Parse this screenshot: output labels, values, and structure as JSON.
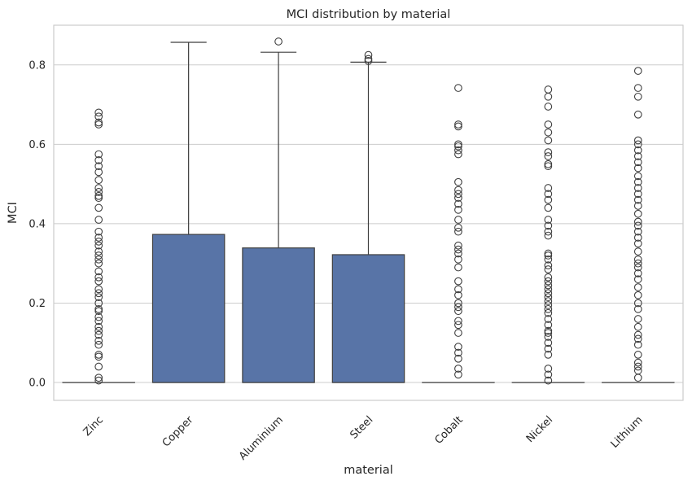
{
  "chart_data": {
    "type": "box",
    "title": "MCI distribution by material",
    "xlabel": "material",
    "ylabel": "MCI",
    "ylim": [
      -0.045,
      0.9
    ],
    "yticks": [
      "0.0",
      "0.2",
      "0.4",
      "0.6",
      "0.8"
    ],
    "grid": true,
    "box_color": "#5874a7",
    "categories": [
      "Zinc",
      "Copper",
      "Aluminium",
      "Steel",
      "Cobalt",
      "Nickel",
      "Lithium"
    ],
    "boxes": [
      {
        "name": "Zinc",
        "q1": 0,
        "median": 0,
        "q3": 0,
        "whisker_low": 0,
        "whisker_high": 0,
        "outliers": [
          0.005,
          0.012,
          0.04,
          0.065,
          0.07,
          0.095,
          0.105,
          0.12,
          0.13,
          0.14,
          0.155,
          0.165,
          0.18,
          0.185,
          0.2,
          0.215,
          0.225,
          0.235,
          0.255,
          0.265,
          0.28,
          0.3,
          0.31,
          0.32,
          0.33,
          0.345,
          0.355,
          0.365,
          0.38,
          0.41,
          0.44,
          0.465,
          0.47,
          0.48,
          0.49,
          0.51,
          0.53,
          0.545,
          0.56,
          0.575,
          0.65,
          0.655,
          0.67,
          0.68
        ]
      },
      {
        "name": "Copper",
        "q1": 0,
        "median": 0,
        "q3": 0.373,
        "whisker_low": 0,
        "whisker_high": 0.857,
        "outliers": []
      },
      {
        "name": "Aluminium",
        "q1": 0,
        "median": 0,
        "q3": 0.339,
        "whisker_low": 0,
        "whisker_high": 0.832,
        "outliers": [
          0.859
        ]
      },
      {
        "name": "Steel",
        "q1": 0,
        "median": 0,
        "q3": 0.322,
        "whisker_low": 0,
        "whisker_high": 0.807,
        "outliers": [
          0.81,
          0.815,
          0.825
        ]
      },
      {
        "name": "Cobalt",
        "q1": 0,
        "median": 0,
        "q3": 0,
        "whisker_low": 0,
        "whisker_high": 0,
        "outliers": [
          0.02,
          0.035,
          0.06,
          0.075,
          0.09,
          0.125,
          0.145,
          0.155,
          0.18,
          0.19,
          0.2,
          0.22,
          0.235,
          0.255,
          0.29,
          0.31,
          0.325,
          0.335,
          0.345,
          0.38,
          0.39,
          0.41,
          0.435,
          0.45,
          0.465,
          0.475,
          0.485,
          0.505,
          0.575,
          0.585,
          0.595,
          0.6,
          0.645,
          0.65,
          0.742
        ]
      },
      {
        "name": "Nickel",
        "q1": 0,
        "median": 0,
        "q3": 0,
        "whisker_low": 0,
        "whisker_high": 0,
        "outliers": [
          0.005,
          0.02,
          0.035,
          0.07,
          0.085,
          0.1,
          0.115,
          0.125,
          0.13,
          0.145,
          0.16,
          0.175,
          0.185,
          0.195,
          0.205,
          0.215,
          0.225,
          0.235,
          0.245,
          0.255,
          0.265,
          0.285,
          0.295,
          0.31,
          0.32,
          0.325,
          0.37,
          0.38,
          0.395,
          0.41,
          0.44,
          0.46,
          0.475,
          0.49,
          0.545,
          0.55,
          0.57,
          0.58,
          0.61,
          0.63,
          0.65,
          0.695,
          0.72,
          0.738
        ]
      },
      {
        "name": "Lithium",
        "q1": 0,
        "median": 0,
        "q3": 0,
        "whisker_low": 0,
        "whisker_high": 0,
        "outliers": [
          0.012,
          0.03,
          0.04,
          0.05,
          0.07,
          0.095,
          0.11,
          0.12,
          0.14,
          0.16,
          0.185,
          0.2,
          0.22,
          0.24,
          0.26,
          0.275,
          0.29,
          0.3,
          0.31,
          0.33,
          0.35,
          0.365,
          0.38,
          0.395,
          0.405,
          0.425,
          0.445,
          0.46,
          0.475,
          0.49,
          0.505,
          0.52,
          0.54,
          0.555,
          0.57,
          0.585,
          0.6,
          0.61,
          0.675,
          0.72,
          0.742,
          0.785
        ]
      }
    ]
  }
}
